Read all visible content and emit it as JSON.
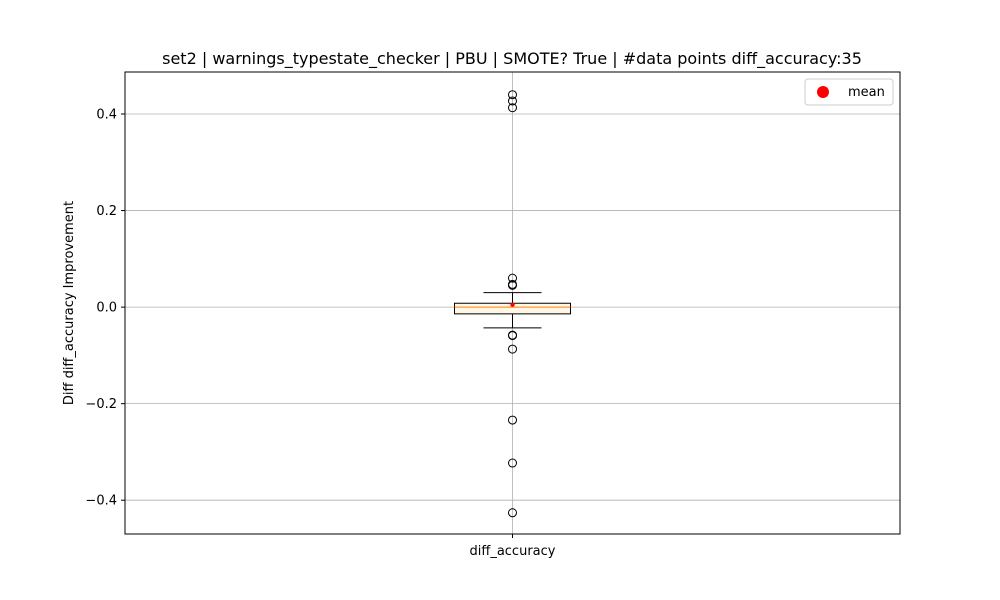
{
  "chart_data": {
    "type": "box",
    "title": "set2 | warnings_typestate_checker | PBU | SMOTE? True | #data points diff_accuracy:35",
    "xlabel": "",
    "ylabel": "Diff diff_accuracy Improvement",
    "categories": [
      "diff_accuracy"
    ],
    "ylim": [
      -0.47,
      0.487
    ],
    "yticks": [
      {
        "value": -0.4,
        "label": "−0.4"
      },
      {
        "value": -0.2,
        "label": "−0.2"
      },
      {
        "value": 0.0,
        "label": "0.0"
      },
      {
        "value": 0.2,
        "label": "0.2"
      },
      {
        "value": 0.4,
        "label": "0.4"
      }
    ],
    "grid": true,
    "legend": {
      "position": "top-right",
      "entries": [
        {
          "label": "mean",
          "color": "#ff0000",
          "marker": "circle"
        }
      ]
    },
    "boxes": [
      {
        "category": "diff_accuracy",
        "q1": -0.014,
        "median": 0.0,
        "q3": 0.008,
        "whisker_low": -0.043,
        "whisker_high": 0.03,
        "mean": 0.005,
        "outliers": [
          0.44,
          0.427,
          0.413,
          0.06,
          0.047,
          0.045,
          -0.058,
          -0.059,
          -0.087,
          -0.234,
          -0.323,
          -0.426
        ]
      }
    ],
    "colors": {
      "box_edge": "#000000",
      "box_face": "#fff8e7",
      "median": "#ff7f0e",
      "mean": "#ff0000",
      "grid": "#b0b0b0",
      "outlier_edge": "#000000"
    }
  }
}
